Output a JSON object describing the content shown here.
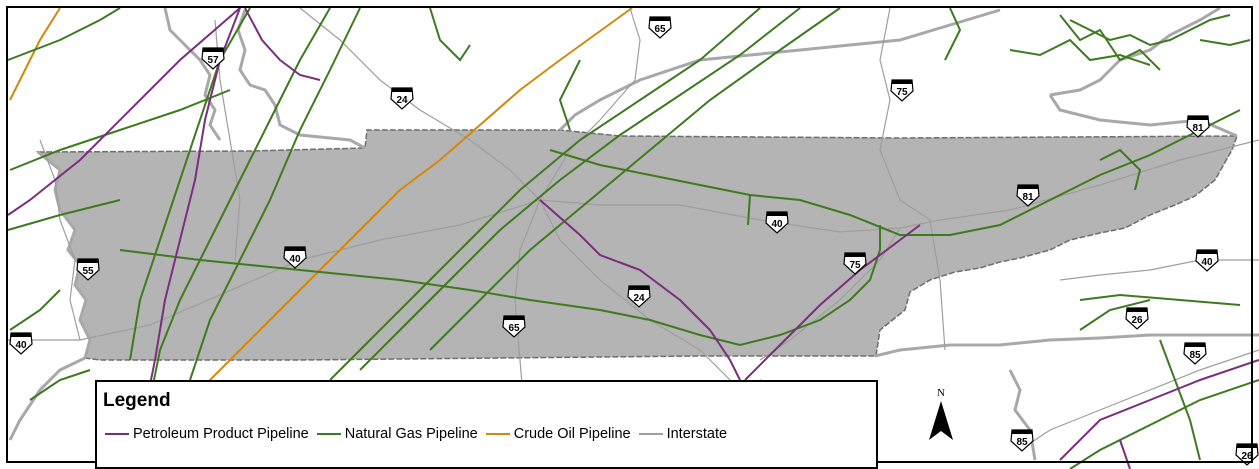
{
  "legend": {
    "title": "Legend",
    "items": [
      {
        "label": "Petroleum Product Pipeline",
        "color": "#7a2e7d"
      },
      {
        "label": "Natural Gas Pipeline",
        "color": "#3e7a1e"
      },
      {
        "label": "Crude Oil Pipeline",
        "color": "#d4880a"
      },
      {
        "label": "Interstate",
        "color": "#9e9e9e"
      }
    ]
  },
  "north_arrow": {
    "label": "N",
    "icon": "north-arrow-icon"
  },
  "shields": [
    "57",
    "65",
    "24",
    "75",
    "81",
    "81",
    "40",
    "40",
    "55",
    "40",
    "75",
    "24",
    "65",
    "40",
    "26",
    "85",
    "85",
    "26"
  ],
  "colors": {
    "state_fill": "#b4b4b4",
    "state_border": "#777777",
    "river_casing": "#a8a8a8",
    "petroleum": "#7a2e7d",
    "natural_gas": "#3e7a1e",
    "crude_oil": "#d4880a",
    "interstate": "#9e9e9e"
  }
}
